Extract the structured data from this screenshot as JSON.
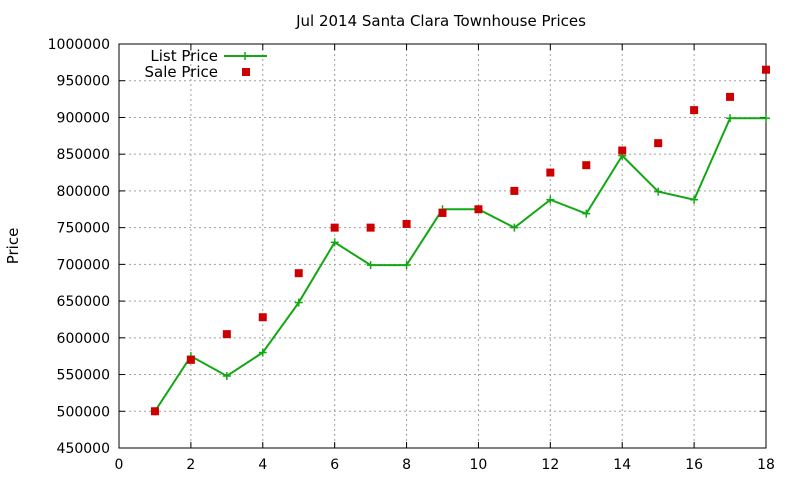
{
  "chart_data": {
    "type": "line",
    "title": "Jul 2014 Santa Clara Townhouse Prices",
    "xlabel": "",
    "ylabel": "Price",
    "xlim": [
      0,
      18
    ],
    "ylim": [
      450000,
      1000000
    ],
    "xticks": [
      0,
      2,
      4,
      6,
      8,
      10,
      12,
      14,
      16,
      18
    ],
    "yticks": [
      450000,
      500000,
      550000,
      600000,
      650000,
      700000,
      750000,
      800000,
      850000,
      900000,
      950000,
      1000000
    ],
    "grid": true,
    "legend_position": "top-left",
    "series": [
      {
        "name": "List Price",
        "style": "line-plus",
        "color": "#13a813",
        "x": [
          1,
          2,
          3,
          4,
          5,
          6,
          7,
          8,
          9,
          10,
          11,
          12,
          13,
          14,
          15,
          16,
          17,
          18
        ],
        "y": [
          500000,
          575000,
          548000,
          580000,
          648000,
          730000,
          699000,
          699000,
          775000,
          775000,
          750000,
          788000,
          769000,
          848000,
          799000,
          788000,
          899000,
          899000
        ]
      },
      {
        "name": "Sale Price",
        "style": "square-points",
        "color": "#cc0000",
        "x": [
          1,
          2,
          3,
          4,
          5,
          6,
          7,
          8,
          9,
          10,
          11,
          12,
          13,
          14,
          15,
          16,
          17,
          18
        ],
        "y": [
          500000,
          570000,
          605000,
          628000,
          688000,
          750000,
          750000,
          755000,
          770000,
          775000,
          800000,
          825000,
          835000,
          855000,
          865000,
          910000,
          928000,
          965000
        ]
      }
    ]
  }
}
